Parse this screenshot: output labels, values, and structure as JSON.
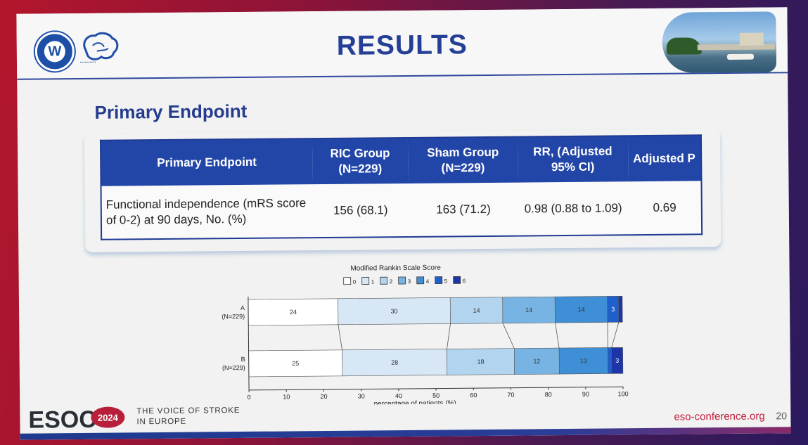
{
  "slide": {
    "title": "RESULTS",
    "heading": "Primary Endpoint"
  },
  "table": {
    "headers": [
      "Primary Endpoint",
      "RIC Group (N=229)",
      "Sham Group (N=229)",
      "RR, (Adjusted 95% CI)",
      "Adjusted P"
    ],
    "row": {
      "endpoint": "Functional independence (mRS score of 0-2) at 90 days, No. (%)",
      "ric": "156 (68.1)",
      "sham": "163 (71.2)",
      "rr": "0.98 (0.88 to 1.09)",
      "p": "0.69"
    }
  },
  "chart_data": {
    "type": "bar",
    "orientation": "horizontal-stacked",
    "title": "Modified Rankin Scale Score",
    "xlabel": "percentage of patients (%)",
    "xlim": [
      0,
      100
    ],
    "xticks": [
      0,
      10,
      20,
      30,
      40,
      50,
      60,
      70,
      80,
      90,
      100
    ],
    "legend": [
      "0",
      "1",
      "2",
      "3",
      "4",
      "5",
      "6"
    ],
    "legend_position": "top",
    "colors": [
      "#ffffff",
      "#d7e7f6",
      "#b3d4ee",
      "#78b4e3",
      "#3f8fd7",
      "#1f5fcb",
      "#1d35a8"
    ],
    "categories": [
      {
        "line1": "A",
        "line2": "(N=229)"
      },
      {
        "line1": "B",
        "line2": "(N=229)"
      }
    ],
    "rows": [
      {
        "values": [
          24,
          30,
          14,
          14,
          14,
          3,
          1
        ],
        "labels": [
          "24",
          "30",
          "14",
          "14",
          "14",
          "3",
          ""
        ]
      },
      {
        "values": [
          25,
          28,
          18,
          12,
          13,
          1,
          3
        ],
        "labels": [
          "25",
          "28",
          "18",
          "12",
          "13",
          "",
          "3"
        ]
      }
    ]
  },
  "footer": {
    "logo": "ESOC",
    "year": "2024",
    "tagline_line1": "THE VOICE OF STROKE",
    "tagline_line2": "IN EUROPE",
    "url": "eso-conference.org",
    "page": "20"
  },
  "colors": {
    "title": "#253f96",
    "table_header": "#2246a8",
    "accent_red": "#c31f3f"
  }
}
